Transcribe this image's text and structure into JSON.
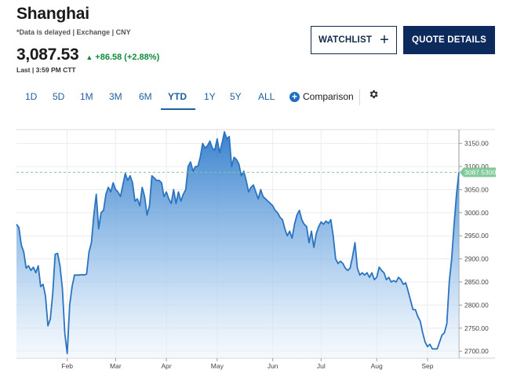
{
  "header": {
    "title": "Shanghai",
    "meta": "*Data is delayed | Exchange | CNY",
    "price": "3,087.53",
    "change": "+86.58 (+2.88%)",
    "last": "Last | 3:59 PM CTT"
  },
  "actions": {
    "watchlist_label": "WATCHLIST",
    "quote_label": "QUOTE DETAILS"
  },
  "ranges": [
    "1D",
    "5D",
    "1M",
    "3M",
    "6M",
    "YTD",
    "1Y",
    "5Y",
    "ALL"
  ],
  "active_range": "YTD",
  "comparison_label": "Comparison",
  "colors": {
    "line": "#2a74c0",
    "fill_top": "#2f7bcb",
    "fill_bottom": "#eef5fc",
    "positive": "#108a3a",
    "last_marker": "#7fc99a",
    "button_dark": "#0d2a5c"
  },
  "icons": {
    "watchlist": "plus-icon",
    "comparison": "plus-circle-icon",
    "settings": "gear-icon",
    "change": "triangle-up-icon"
  },
  "chart_data": {
    "type": "area",
    "x_labels": [
      "Feb",
      "Mar",
      "Apr",
      "May",
      "Jun",
      "Jul",
      "Aug",
      "Sep"
    ],
    "y_ticks": [
      2700,
      2750,
      2800,
      2850,
      2900,
      2950,
      3000,
      3050,
      3100,
      3150
    ],
    "y_tick_labels": [
      "2700.00",
      "2750.00",
      "2800.00",
      "2850.00",
      "2900.00",
      "2950.00",
      "3000.00",
      "3050.00",
      "3100.00",
      "3150.00"
    ],
    "ylim": [
      2685,
      3180
    ],
    "last_value": 3087.53,
    "last_label": "3087.5300",
    "grid": true,
    "values": [
      2975,
      2968,
      2930,
      2915,
      2880,
      2885,
      2875,
      2882,
      2870,
      2885,
      2840,
      2845,
      2820,
      2755,
      2770,
      2825,
      2910,
      2912,
      2885,
      2835,
      2738,
      2695,
      2800,
      2840,
      2865,
      2865,
      2865,
      2866,
      2865,
      2867,
      2915,
      2935,
      2995,
      3040,
      2965,
      3000,
      3005,
      3040,
      3055,
      3045,
      3065,
      3050,
      3045,
      3035,
      3060,
      3085,
      3070,
      3080,
      3065,
      3025,
      3030,
      3015,
      3055,
      3035,
      2995,
      3015,
      3080,
      3075,
      3070,
      3070,
      3065,
      3035,
      3045,
      3030,
      3020,
      3050,
      3020,
      3045,
      3025,
      3040,
      3050,
      3100,
      3110,
      3090,
      3100,
      3100,
      3120,
      3150,
      3140,
      3145,
      3155,
      3140,
      3135,
      3160,
      3130,
      3150,
      3175,
      3160,
      3165,
      3100,
      3120,
      3115,
      3105,
      3080,
      3090,
      3070,
      3045,
      3055,
      3060,
      3045,
      3030,
      3050,
      3035,
      3030,
      3025,
      3020,
      3015,
      3005,
      3000,
      2990,
      2985,
      2965,
      2950,
      2960,
      2945,
      2975,
      2995,
      3005,
      2985,
      2975,
      2970,
      2935,
      2960,
      2925,
      2955,
      2970,
      2980,
      2975,
      2982,
      2977,
      2985,
      2950,
      2900,
      2890,
      2895,
      2890,
      2880,
      2875,
      2880,
      2905,
      2935,
      2880,
      2865,
      2870,
      2865,
      2870,
      2860,
      2870,
      2855,
      2860,
      2882,
      2875,
      2870,
      2855,
      2860,
      2850,
      2853,
      2850,
      2860,
      2855,
      2845,
      2848,
      2830,
      2810,
      2790,
      2790,
      2775,
      2765,
      2740,
      2720,
      2710,
      2715,
      2705,
      2705,
      2705,
      2720,
      2735,
      2740,
      2760,
      2850,
      2900,
      2975,
      3040,
      3087.53
    ]
  }
}
